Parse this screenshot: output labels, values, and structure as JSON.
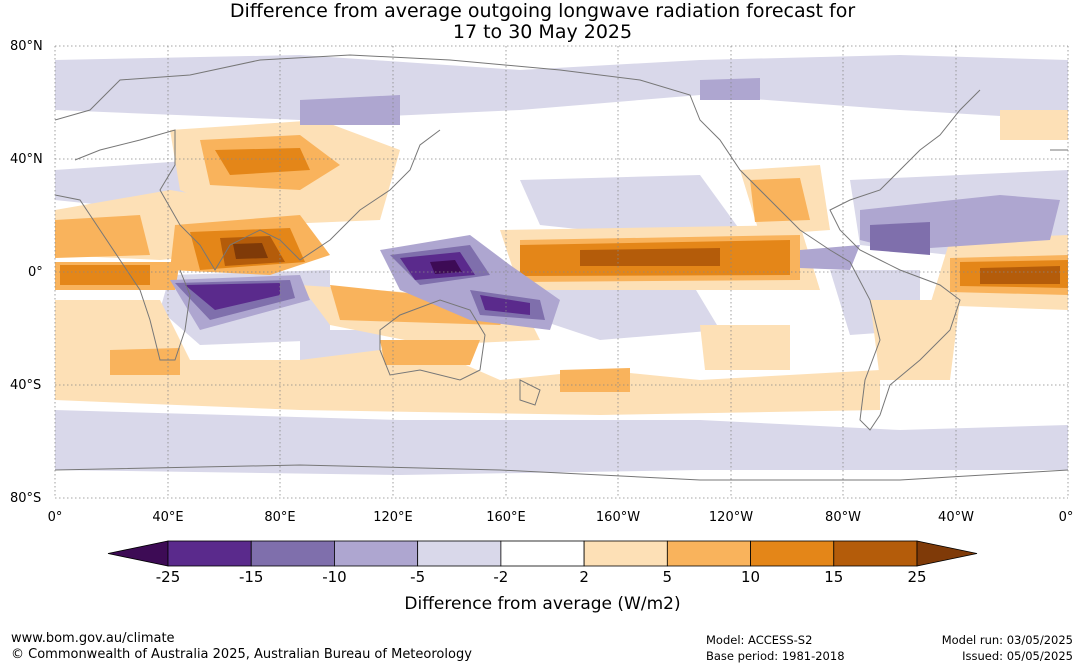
{
  "title_line1": "Difference from average outgoing longwave radiation forecast for",
  "title_line2": "17 to 30 May 2025",
  "lat_labels": [
    "80°N",
    "40°N",
    "0°",
    "40°S",
    "80°S"
  ],
  "lon_labels": [
    "0°",
    "40°E",
    "80°E",
    "120°E",
    "160°E",
    "160°W",
    "120°W",
    "80°W",
    "40°W",
    "0°"
  ],
  "colorbar": {
    "ticks": [
      "-25",
      "-15",
      "-10",
      "-5",
      "-2",
      "2",
      "5",
      "10",
      "15",
      "25"
    ],
    "colors": [
      "#3d0b55",
      "#5a2a8c",
      "#7f6fac",
      "#aea6d0",
      "#d9d8ea",
      "#ffffff",
      "#fde0b6",
      "#f9b35c",
      "#e48618",
      "#b45c0a",
      "#7f3a08"
    ],
    "label": "Difference from average (W/m2)"
  },
  "footer": {
    "url": "www.bom.gov.au/climate",
    "copyright": "© Commonwealth of Australia 2025, Australian Bureau of Meteorology",
    "model": "Model: ACCESS-S2",
    "base_period": "Base period: 1981-2018",
    "model_run": "Model run: 03/05/2025",
    "issued": "Issued: 05/05/2025"
  },
  "map": {
    "lat_range": [
      -80,
      80
    ],
    "lon_range": [
      0,
      360
    ],
    "grid": true
  }
}
